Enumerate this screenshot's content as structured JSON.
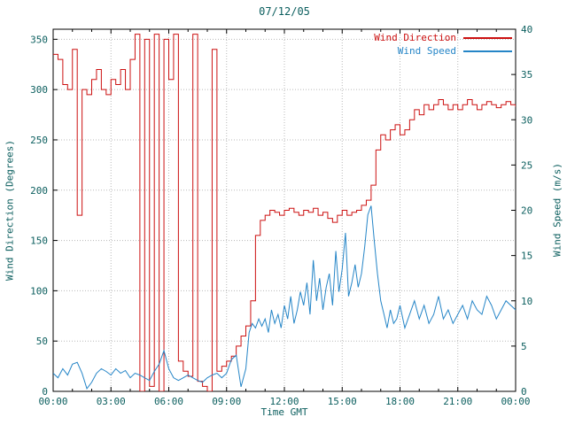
{
  "chart_data": {
    "type": "line",
    "title": "07/12/05",
    "xlabel": "Time GMT",
    "x_range_hours": [
      0,
      24
    ],
    "x_ticks": [
      {
        "h": 0,
        "label": "00:00"
      },
      {
        "h": 3,
        "label": "03:00"
      },
      {
        "h": 6,
        "label": "06:00"
      },
      {
        "h": 9,
        "label": "09:00"
      },
      {
        "h": 12,
        "label": "12:00"
      },
      {
        "h": 15,
        "label": "15:00"
      },
      {
        "h": 18,
        "label": "18:00"
      },
      {
        "h": 21,
        "label": "21:00"
      },
      {
        "h": 24,
        "label": "00:00"
      }
    ],
    "x_minor_tick_every_hours": 1,
    "left_axis": {
      "label": "Wind Direction (Degrees)",
      "range": [
        0,
        360
      ],
      "ticks": [
        0,
        50,
        100,
        150,
        200,
        250,
        300,
        350
      ]
    },
    "right_axis": {
      "label": "Wind Speed (m/s)",
      "range": [
        0,
        40
      ],
      "ticks": [
        0,
        5,
        10,
        15,
        20,
        25,
        30,
        35,
        40
      ]
    },
    "grid": {
      "show": true,
      "color": "#b8b8b8"
    },
    "colors": {
      "frame": "#000000",
      "text": "#0b5e5e",
      "background": "#ffffff"
    },
    "legend_position": "top-right",
    "series": [
      {
        "name": "Wind Direction",
        "color": "#cc1111",
        "axis": "left",
        "style": "steps",
        "points": [
          [
            0,
            335
          ],
          [
            0.25,
            330
          ],
          [
            0.5,
            305
          ],
          [
            0.75,
            300
          ],
          [
            1,
            340
          ],
          [
            1.25,
            175
          ],
          [
            1.5,
            300
          ],
          [
            1.75,
            295
          ],
          [
            2,
            310
          ],
          [
            2.25,
            320
          ],
          [
            2.5,
            300
          ],
          [
            2.75,
            295
          ],
          [
            3,
            310
          ],
          [
            3.25,
            305
          ],
          [
            3.5,
            320
          ],
          [
            3.75,
            300
          ],
          [
            4,
            330
          ],
          [
            4.25,
            355
          ],
          [
            4.5,
            0
          ],
          [
            4.75,
            350
          ],
          [
            5,
            5
          ],
          [
            5.25,
            355
          ],
          [
            5.5,
            0
          ],
          [
            5.75,
            350
          ],
          [
            6,
            310
          ],
          [
            6.25,
            355
          ],
          [
            6.5,
            30
          ],
          [
            6.75,
            20
          ],
          [
            7,
            15
          ],
          [
            7.25,
            355
          ],
          [
            7.5,
            10
          ],
          [
            7.75,
            5
          ],
          [
            8,
            0
          ],
          [
            8.25,
            340
          ],
          [
            8.5,
            20
          ],
          [
            8.75,
            25
          ],
          [
            9,
            30
          ],
          [
            9.25,
            35
          ],
          [
            9.5,
            45
          ],
          [
            9.75,
            55
          ],
          [
            10,
            65
          ],
          [
            10.25,
            90
          ],
          [
            10.5,
            155
          ],
          [
            10.75,
            170
          ],
          [
            11,
            175
          ],
          [
            11.25,
            180
          ],
          [
            11.5,
            178
          ],
          [
            11.75,
            175
          ],
          [
            12,
            180
          ],
          [
            12.25,
            182
          ],
          [
            12.5,
            178
          ],
          [
            12.75,
            175
          ],
          [
            13,
            180
          ],
          [
            13.25,
            178
          ],
          [
            13.5,
            182
          ],
          [
            13.75,
            175
          ],
          [
            14,
            178
          ],
          [
            14.25,
            172
          ],
          [
            14.5,
            168
          ],
          [
            14.75,
            175
          ],
          [
            15,
            180
          ],
          [
            15.25,
            175
          ],
          [
            15.5,
            178
          ],
          [
            15.75,
            180
          ],
          [
            16,
            185
          ],
          [
            16.25,
            190
          ],
          [
            16.5,
            205
          ],
          [
            16.75,
            240
          ],
          [
            17,
            255
          ],
          [
            17.25,
            250
          ],
          [
            17.5,
            260
          ],
          [
            17.75,
            265
          ],
          [
            18,
            255
          ],
          [
            18.25,
            260
          ],
          [
            18.5,
            270
          ],
          [
            18.75,
            280
          ],
          [
            19,
            275
          ],
          [
            19.25,
            285
          ],
          [
            19.5,
            280
          ],
          [
            19.75,
            285
          ],
          [
            20,
            290
          ],
          [
            20.25,
            285
          ],
          [
            20.5,
            280
          ],
          [
            20.75,
            285
          ],
          [
            21,
            280
          ],
          [
            21.25,
            285
          ],
          [
            21.5,
            290
          ],
          [
            21.75,
            285
          ],
          [
            22,
            280
          ],
          [
            22.25,
            285
          ],
          [
            22.5,
            288
          ],
          [
            22.75,
            285
          ],
          [
            23,
            282
          ],
          [
            23.25,
            285
          ],
          [
            23.5,
            288
          ],
          [
            23.75,
            285
          ],
          [
            24,
            283
          ]
        ]
      },
      {
        "name": "Wind Speed",
        "color": "#2585c7",
        "axis": "right",
        "style": "line",
        "points": [
          [
            0,
            2
          ],
          [
            0.25,
            1.5
          ],
          [
            0.5,
            2.5
          ],
          [
            0.75,
            1.8
          ],
          [
            1,
            3
          ],
          [
            1.25,
            3.2
          ],
          [
            1.5,
            2
          ],
          [
            1.75,
            0.3
          ],
          [
            2,
            1
          ],
          [
            2.25,
            2
          ],
          [
            2.5,
            2.5
          ],
          [
            2.75,
            2.2
          ],
          [
            3,
            1.8
          ],
          [
            3.25,
            2.5
          ],
          [
            3.5,
            2
          ],
          [
            3.75,
            2.3
          ],
          [
            4,
            1.5
          ],
          [
            4.25,
            2
          ],
          [
            4.5,
            1.8
          ],
          [
            4.75,
            1.5
          ],
          [
            5,
            1.2
          ],
          [
            5.25,
            2.2
          ],
          [
            5.5,
            3
          ],
          [
            5.75,
            4.5
          ],
          [
            6,
            2.5
          ],
          [
            6.25,
            1.5
          ],
          [
            6.5,
            1.2
          ],
          [
            6.75,
            1.5
          ],
          [
            7,
            1.8
          ],
          [
            7.25,
            1.5
          ],
          [
            7.5,
            1.2
          ],
          [
            7.75,
            1
          ],
          [
            8,
            1.5
          ],
          [
            8.25,
            1.8
          ],
          [
            8.5,
            2
          ],
          [
            8.75,
            1.5
          ],
          [
            9,
            2
          ],
          [
            9.25,
            3.5
          ],
          [
            9.5,
            4
          ],
          [
            9.75,
            0.5
          ],
          [
            10,
            2.5
          ],
          [
            10.17,
            6.5
          ],
          [
            10.33,
            7.5
          ],
          [
            10.5,
            7
          ],
          [
            10.67,
            8
          ],
          [
            10.83,
            7.2
          ],
          [
            11,
            8
          ],
          [
            11.17,
            6.5
          ],
          [
            11.33,
            9
          ],
          [
            11.5,
            7.5
          ],
          [
            11.67,
            8.5
          ],
          [
            11.83,
            7
          ],
          [
            12,
            9.5
          ],
          [
            12.17,
            8
          ],
          [
            12.33,
            10.5
          ],
          [
            12.5,
            7.5
          ],
          [
            12.67,
            9
          ],
          [
            12.83,
            11
          ],
          [
            13,
            9.5
          ],
          [
            13.17,
            12
          ],
          [
            13.33,
            8.5
          ],
          [
            13.5,
            14.5
          ],
          [
            13.67,
            10
          ],
          [
            13.83,
            12.5
          ],
          [
            14,
            9
          ],
          [
            14.17,
            11.5
          ],
          [
            14.33,
            13
          ],
          [
            14.5,
            9.5
          ],
          [
            14.67,
            15.5
          ],
          [
            14.83,
            11
          ],
          [
            15,
            13.5
          ],
          [
            15.17,
            17.5
          ],
          [
            15.33,
            10.5
          ],
          [
            15.5,
            12
          ],
          [
            15.67,
            14
          ],
          [
            15.83,
            11.5
          ],
          [
            16,
            13
          ],
          [
            16.17,
            16
          ],
          [
            16.33,
            19.5
          ],
          [
            16.5,
            20.5
          ],
          [
            16.67,
            16.5
          ],
          [
            16.83,
            13
          ],
          [
            17,
            10
          ],
          [
            17.17,
            8.5
          ],
          [
            17.33,
            7
          ],
          [
            17.5,
            9
          ],
          [
            17.67,
            7.5
          ],
          [
            17.83,
            8
          ],
          [
            18,
            9.5
          ],
          [
            18.25,
            7
          ],
          [
            18.5,
            8.5
          ],
          [
            18.75,
            10
          ],
          [
            19,
            8
          ],
          [
            19.25,
            9.5
          ],
          [
            19.5,
            7.5
          ],
          [
            19.75,
            8.5
          ],
          [
            20,
            10.5
          ],
          [
            20.25,
            8
          ],
          [
            20.5,
            9
          ],
          [
            20.75,
            7.5
          ],
          [
            21,
            8.5
          ],
          [
            21.25,
            9.5
          ],
          [
            21.5,
            8
          ],
          [
            21.75,
            10
          ],
          [
            22,
            9
          ],
          [
            22.25,
            8.5
          ],
          [
            22.5,
            10.5
          ],
          [
            22.75,
            9.5
          ],
          [
            23,
            8
          ],
          [
            23.25,
            9
          ],
          [
            23.5,
            10
          ],
          [
            23.75,
            9.5
          ],
          [
            24,
            9
          ]
        ]
      }
    ]
  }
}
